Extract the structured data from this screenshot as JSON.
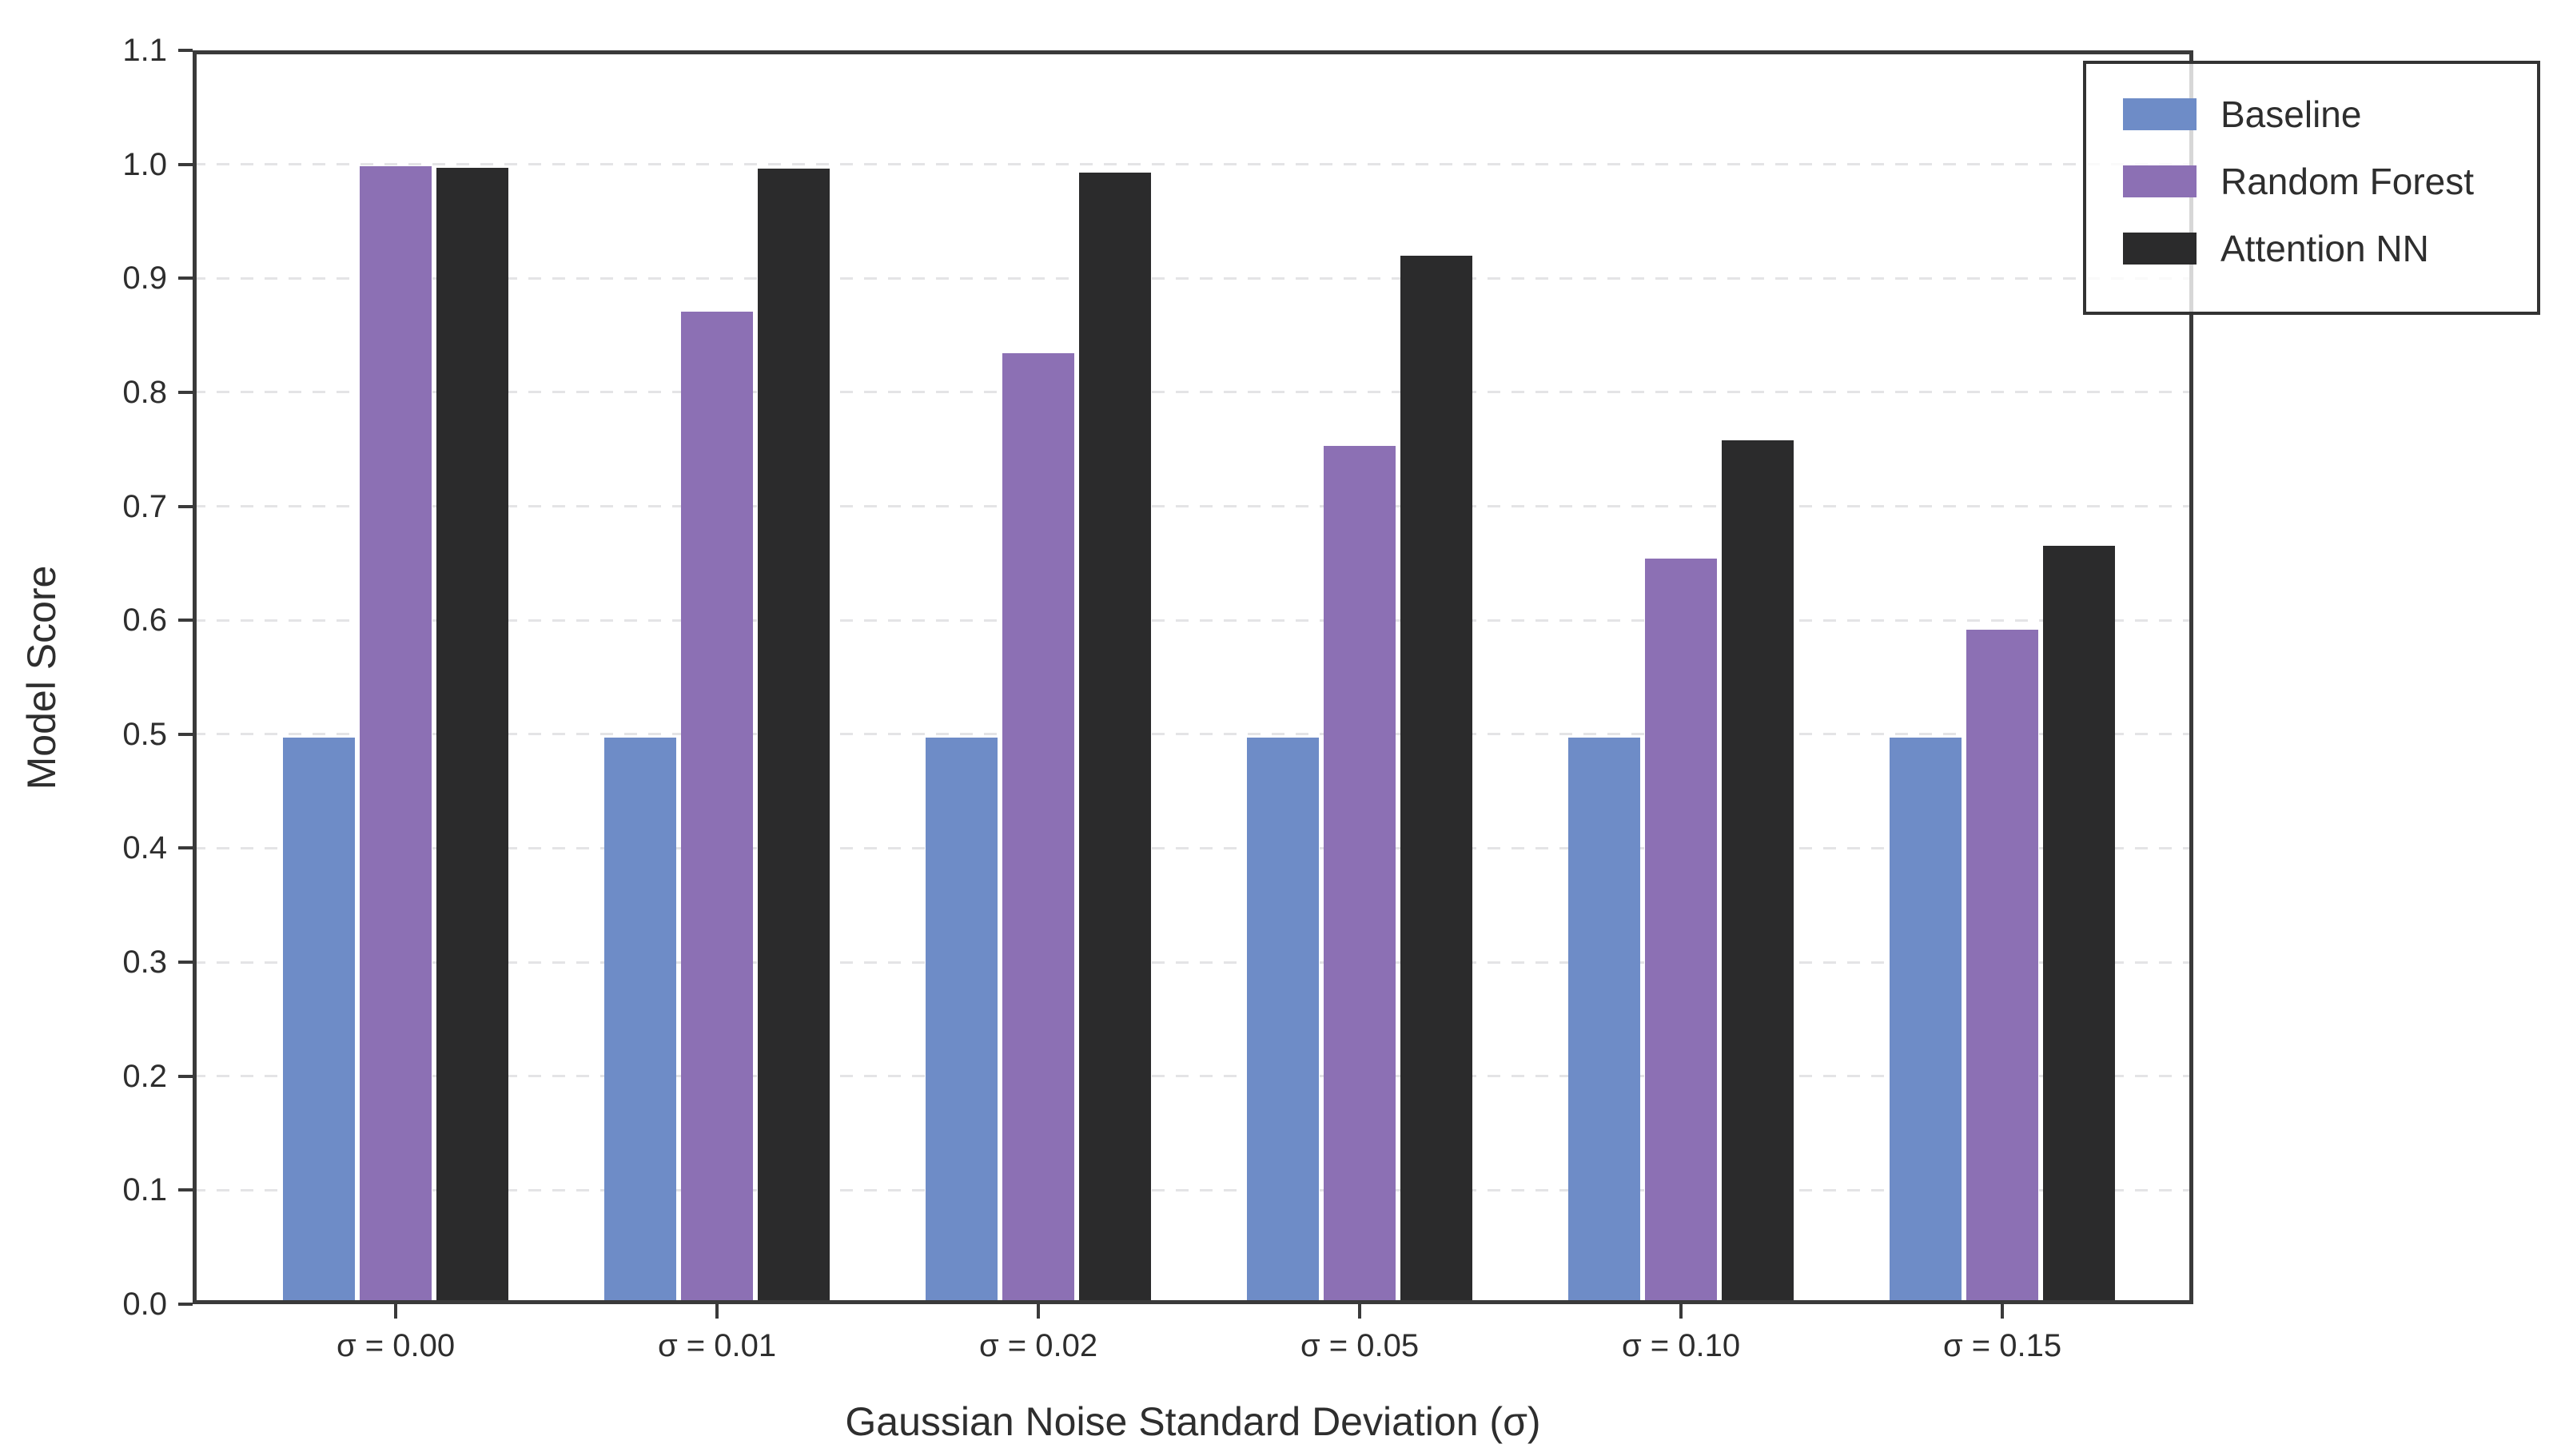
{
  "chart_data": {
    "type": "bar",
    "title": "",
    "xlabel": "Gaussian Noise Standard Deviation (σ)",
    "ylabel": "Model Score",
    "categories": [
      "σ = 0.00",
      "σ = 0.01",
      "σ = 0.02",
      "σ = 0.05",
      "σ = 0.10",
      "σ = 0.15"
    ],
    "series": [
      {
        "name": "Baseline",
        "color": "#6e8cc7",
        "values": [
          0.497,
          0.497,
          0.497,
          0.497,
          0.497,
          0.497
        ]
      },
      {
        "name": "Random Forest",
        "color": "#8c70b4",
        "values": [
          0.998,
          0.871,
          0.834,
          0.753,
          0.654,
          0.592
        ]
      },
      {
        "name": "Attention NN",
        "color": "#2b2b2c",
        "values": [
          0.997,
          0.996,
          0.993,
          0.92,
          0.758,
          0.665
        ]
      }
    ],
    "ylim": [
      0,
      1.1
    ],
    "yticks": [
      "0.0",
      "0.1",
      "0.2",
      "0.3",
      "0.4",
      "0.5",
      "0.6",
      "0.7",
      "0.8",
      "0.9",
      "1.0",
      "1.1"
    ],
    "grid": "horizontal-dashed",
    "legend_position": "upper-right"
  },
  "colors": {
    "spine": "#3a3a3a",
    "grid": "#e4e4e6",
    "text": "#2e2e2e",
    "legend_border": "#333333",
    "background": "#ffffff"
  }
}
